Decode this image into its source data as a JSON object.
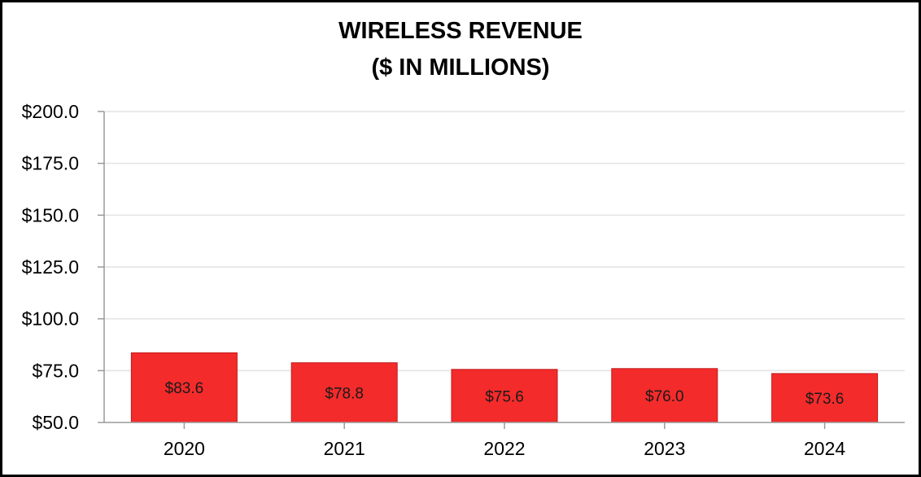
{
  "chart_data": {
    "type": "bar",
    "title_lines": [
      "WIRELESS REVENUE",
      "($ IN MILLIONS)"
    ],
    "categories": [
      "2020",
      "2021",
      "2022",
      "2023",
      "2024"
    ],
    "values": [
      83.6,
      78.8,
      75.6,
      76.0,
      73.6
    ],
    "data_labels": [
      "$83.6",
      "$78.8",
      "$75.6",
      "$76.0",
      "$73.6"
    ],
    "ylim": [
      50,
      200
    ],
    "yticks": [
      50,
      75,
      100,
      125,
      150,
      175,
      200
    ],
    "ytick_labels": [
      "$50.0",
      "$75.0",
      "$100.0",
      "$125.0",
      "$150.0",
      "$175.0",
      "$200.0"
    ],
    "xlabel": "",
    "ylabel": "",
    "grid": true,
    "bar_color": "#f42b2b",
    "bar_edge_color": "#c21a1a",
    "grid_color": "#e3e3e3",
    "axis_color": "#9a9a9a"
  }
}
